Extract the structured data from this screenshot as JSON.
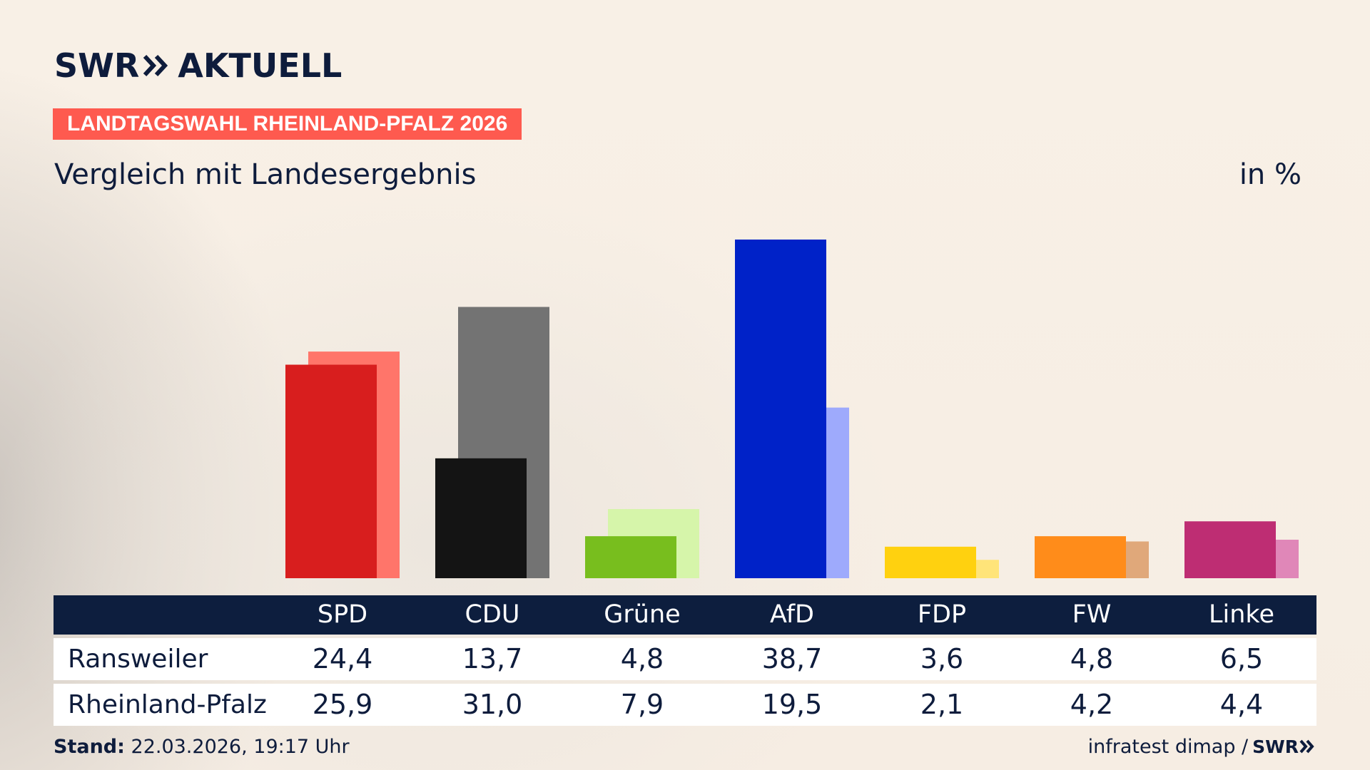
{
  "header": {
    "logo_text": "SWR",
    "logo_suffix": "AKTUELL",
    "tag": "LANDTAGSWAHL RHEINLAND-PFALZ 2026",
    "subtitle": "Vergleich mit Landesergebnis",
    "unit": "in %"
  },
  "colors": {
    "brand_navy": "#0e1c3c",
    "tag_red": "#fe5a4f"
  },
  "chart_data": {
    "type": "bar",
    "categories": [
      "SPD",
      "CDU",
      "Grüne",
      "AfD",
      "FDP",
      "FW",
      "Linke"
    ],
    "series": [
      {
        "name": "Ransweiler",
        "values": [
          24.4,
          13.7,
          4.8,
          38.7,
          3.6,
          4.8,
          6.5
        ],
        "colors": [
          "#d81e1e",
          "#141414",
          "#78be1e",
          "#0022c8",
          "#ffd10f",
          "#ff8c1a",
          "#be2d73"
        ]
      },
      {
        "name": "Rheinland-Pfalz",
        "values": [
          25.9,
          31.0,
          7.9,
          19.5,
          2.1,
          4.2,
          4.4
        ],
        "colors": [
          "#ff756a",
          "#737373",
          "#d6f5aa",
          "#9eaafc",
          "#ffe479",
          "#e0a87a",
          "#e087b8"
        ]
      }
    ],
    "ylim": [
      0,
      38.7
    ],
    "grid": false,
    "legend": "none"
  },
  "table": {
    "rows": [
      {
        "label": "Ransweiler",
        "values": [
          "24,4",
          "13,7",
          "4,8",
          "38,7",
          "3,6",
          "4,8",
          "6,5"
        ]
      },
      {
        "label": "Rheinland-Pfalz",
        "values": [
          "25,9",
          "31,0",
          "7,9",
          "19,5",
          "2,1",
          "4,2",
          "4,4"
        ]
      }
    ]
  },
  "footer": {
    "stand_label": "Stand:",
    "stand_value": "22.03.2026, 19:17 Uhr",
    "source": "infratest dimap /",
    "brand": "SWR"
  },
  "icons": [
    "swr-double-chevron-icon"
  ]
}
